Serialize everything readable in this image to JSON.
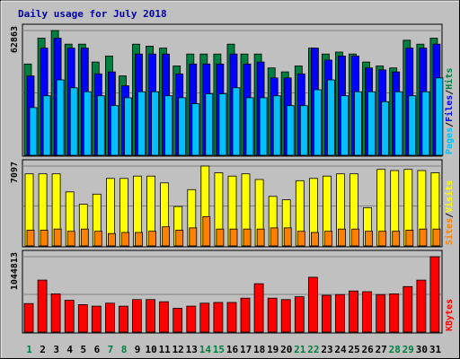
{
  "chart_data": {
    "type": "bar",
    "title": "Daily usage for July 2018",
    "categories": [
      "1",
      "2",
      "3",
      "4",
      "5",
      "6",
      "7",
      "8",
      "9",
      "10",
      "11",
      "12",
      "13",
      "14",
      "15",
      "16",
      "17",
      "18",
      "19",
      "20",
      "21",
      "22",
      "23",
      "24",
      "25",
      "26",
      "27",
      "28",
      "29",
      "30",
      "31"
    ],
    "weekend_days": [
      "1",
      "7",
      "8",
      "14",
      "15",
      "21",
      "22",
      "28",
      "29"
    ],
    "panels": [
      {
        "name": "hits-files-pages",
        "ymax_label": "62863",
        "ymax": 62863,
        "side_labels": [
          "Pages",
          "Files",
          "Hits"
        ],
        "series": [
          {
            "name": "Hits",
            "color": "#008040",
            "values": [
              46000,
              59000,
              62863,
              56000,
              56000,
              47000,
              50000,
              40000,
              56000,
              55000,
              54000,
              45000,
              51000,
              51000,
              51000,
              56000,
              51000,
              51000,
              44000,
              42000,
              45000,
              54000,
              51000,
              52000,
              51000,
              47000,
              45000,
              44000,
              58000,
              56000,
              59000
            ]
          },
          {
            "name": "Files",
            "color": "#0000ff",
            "values": [
              40000,
              54000,
              59000,
              54000,
              54000,
              41000,
              42000,
              35000,
              51000,
              51000,
              51000,
              41000,
              46000,
              46000,
              46000,
              51000,
              46000,
              47000,
              39000,
              39000,
              41000,
              54000,
              48000,
              50000,
              50000,
              44000,
              43000,
              42000,
              54000,
              54000,
              56000
            ]
          },
          {
            "name": "Pages",
            "color": "#00c0ff",
            "values": [
              24000,
              30000,
              38000,
              34000,
              32000,
              30000,
              25000,
              29000,
              32000,
              32000,
              30000,
              29000,
              26000,
              31000,
              31000,
              34000,
              29000,
              29000,
              30000,
              25000,
              25000,
              33000,
              38000,
              30000,
              32000,
              32000,
              27000,
              32000,
              30000,
              32000,
              39000
            ]
          }
        ]
      },
      {
        "name": "visits-sites",
        "ymax_label": "7097",
        "ymax": 7097,
        "side_labels": [
          "Sites",
          "Visits"
        ],
        "series": [
          {
            "name": "Visits",
            "color": "#ffff00",
            "values": [
              6400,
              6400,
              6400,
              4800,
              3700,
              4600,
              6000,
              6000,
              6200,
              6200,
              5600,
              3500,
              5000,
              7097,
              6500,
              6200,
              6400,
              5900,
              4400,
              4100,
              5800,
              6000,
              6200,
              6400,
              6400,
              3400,
              6800,
              6700,
              6800,
              6700,
              6500
            ]
          },
          {
            "name": "Sites",
            "color": "#ff8000",
            "values": [
              1400,
              1400,
              1500,
              1300,
              1500,
              1300,
              1100,
              1200,
              1200,
              1300,
              1700,
              1400,
              1600,
              2600,
              1500,
              1500,
              1500,
              1500,
              1600,
              1600,
              1300,
              1200,
              1300,
              1500,
              1500,
              1300,
              1300,
              1300,
              1400,
              1500,
              1500
            ]
          }
        ]
      },
      {
        "name": "kbytes",
        "ymax_label": "1044813",
        "ymax": 1044813,
        "side_labels": [
          "KBytes"
        ],
        "series": [
          {
            "name": "KBytes",
            "color": "#ff0000",
            "values": [
              395000,
              720000,
              530000,
              440000,
              380000,
              360000,
              400000,
              360000,
              450000,
              450000,
              420000,
              330000,
              360000,
              400000,
              410000,
              410000,
              470000,
              670000,
              470000,
              450000,
              490000,
              760000,
              510000,
              520000,
              570000,
              560000,
              520000,
              530000,
              630000,
              720000,
              1044813
            ]
          }
        ]
      }
    ]
  }
}
